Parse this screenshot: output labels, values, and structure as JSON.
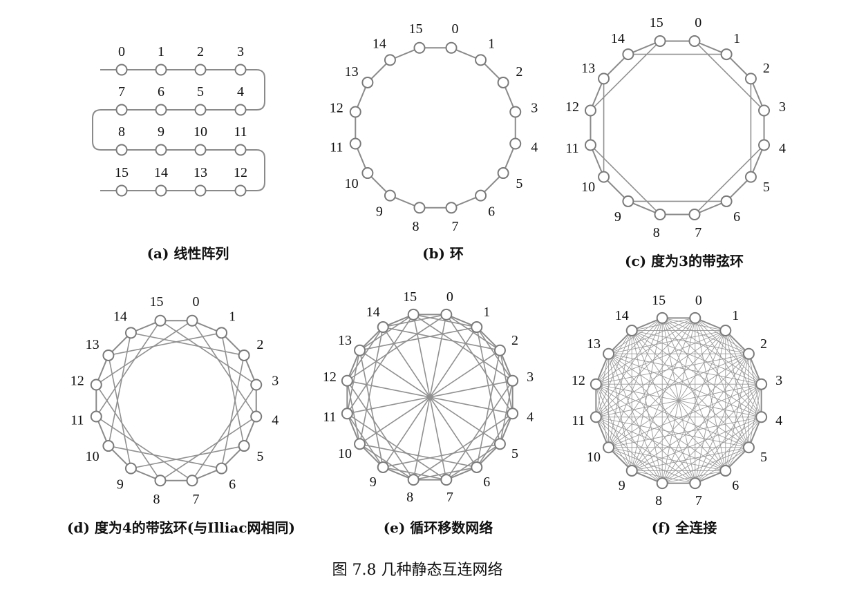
{
  "figure_caption": "图 7.8    几种静态互连网络",
  "node_labels": [
    "0",
    "1",
    "2",
    "3",
    "4",
    "5",
    "6",
    "7",
    "8",
    "9",
    "10",
    "11",
    "12",
    "13",
    "14",
    "15"
  ],
  "panels": [
    {
      "id": "a",
      "caption": "(a) 线性阵列",
      "type": "linear-array",
      "nodes": 16
    },
    {
      "id": "b",
      "caption": "(b) 环",
      "type": "ring",
      "nodes": 16,
      "chord_offsets": []
    },
    {
      "id": "c",
      "caption": "(c) 度为3的带弦环",
      "type": "chordal-ring-3",
      "nodes": 16,
      "chord_offsets": [
        3
      ]
    },
    {
      "id": "d",
      "caption": "(d) 度为4的带弦环(与Illiac网相同)",
      "type": "chordal-ring-4",
      "nodes": 16,
      "chord_offsets": [
        4
      ]
    },
    {
      "id": "e",
      "caption": "(e) 循环移数网络",
      "type": "barrel-shifter",
      "nodes": 16,
      "chord_offsets": [
        2,
        4,
        8
      ]
    },
    {
      "id": "f",
      "caption": "(f) 全连接",
      "type": "fully-connected",
      "nodes": 16
    }
  ]
}
